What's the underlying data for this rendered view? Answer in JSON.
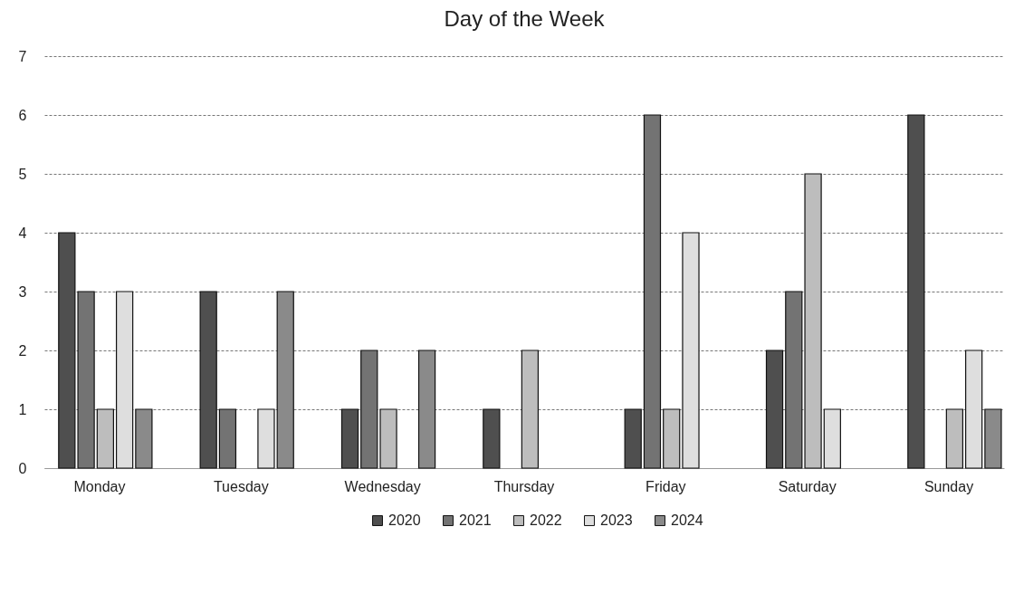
{
  "chart_data": {
    "type": "bar",
    "title": "Day of the Week",
    "categories": [
      "Monday",
      "Tuesday",
      "Wednesday",
      "Thursday",
      "Friday",
      "Saturday",
      "Sunday"
    ],
    "series": [
      {
        "name": "2020",
        "color": "#4f4f4f",
        "values": [
          4,
          3,
          1,
          1,
          1,
          2,
          6
        ]
      },
      {
        "name": "2021",
        "color": "#737373",
        "values": [
          3,
          1,
          2,
          0,
          6,
          3,
          0
        ]
      },
      {
        "name": "2022",
        "color": "#bdbdbd",
        "values": [
          1,
          0,
          1,
          2,
          1,
          5,
          1
        ]
      },
      {
        "name": "2023",
        "color": "#dedede",
        "values": [
          3,
          1,
          0,
          0,
          4,
          1,
          2
        ]
      },
      {
        "name": "2024",
        "color": "#8a8a8a",
        "values": [
          1,
          3,
          2,
          0,
          0,
          0,
          1
        ]
      }
    ],
    "ylim": [
      0,
      7
    ],
    "yticks": [
      0,
      1,
      2,
      3,
      4,
      5,
      6,
      7
    ],
    "grid": "y",
    "legend": "bottom"
  }
}
